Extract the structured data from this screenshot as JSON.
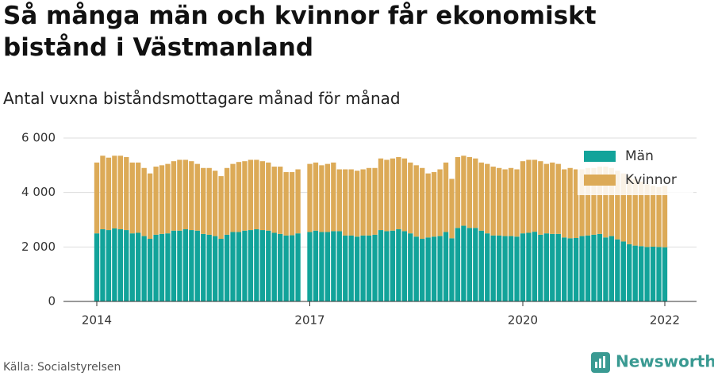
{
  "chart_data": {
    "type": "stacked_bar",
    "title": "Så många män och kvinnor får ekonomiskt bistånd i Västmanland",
    "subtitle": "Antal vuxna biståndsmottagare månad för månad",
    "source": "Källa: Socialstyrelsen",
    "brand": "Newsworthy",
    "categories": [
      "2014",
      null,
      null,
      null,
      null,
      null,
      null,
      null,
      null,
      null,
      null,
      null,
      null,
      null,
      null,
      null,
      null,
      null,
      null,
      null,
      null,
      null,
      null,
      null,
      null,
      null,
      null,
      null,
      null,
      null,
      null,
      null,
      null,
      null,
      null,
      null,
      "2017",
      null,
      null,
      null,
      null,
      null,
      null,
      null,
      null,
      null,
      null,
      null,
      null,
      null,
      null,
      null,
      null,
      null,
      null,
      null,
      null,
      null,
      null,
      null,
      null,
      null,
      null,
      null,
      null,
      null,
      null,
      null,
      null,
      null,
      null,
      null,
      "2020",
      null,
      null,
      null,
      null,
      null,
      null,
      null,
      null,
      null,
      null,
      null,
      null,
      null,
      null,
      null,
      null,
      null,
      null,
      null,
      null,
      null,
      null,
      null,
      "2022"
    ],
    "series": [
      {
        "name": "Män",
        "color": "#12a39a",
        "values": [
          2500,
          2650,
          2620,
          2680,
          2650,
          2620,
          2500,
          2520,
          2400,
          2300,
          2450,
          2480,
          2500,
          2600,
          2600,
          2650,
          2620,
          2600,
          2480,
          2450,
          2400,
          2300,
          2450,
          2550,
          2550,
          2600,
          2620,
          2650,
          2620,
          2600,
          2520,
          2480,
          2420,
          2430,
          2500,
          null,
          2550,
          2600,
          2550,
          2550,
          2580,
          2580,
          2420,
          2420,
          2380,
          2420,
          2420,
          2450,
          2620,
          2580,
          2600,
          2650,
          2580,
          2500,
          2380,
          2300,
          2350,
          2380,
          2400,
          2550,
          2320,
          2700,
          2780,
          2700,
          2700,
          2600,
          2500,
          2420,
          2420,
          2400,
          2400,
          2380,
          2500,
          2520,
          2560,
          2450,
          2500,
          2480,
          2480,
          2350,
          2320,
          2330,
          2400,
          2420,
          2450,
          2480,
          2350,
          2400,
          2280,
          2200,
          2100,
          2050,
          2030,
          2000,
          2010,
          2000,
          1990
        ]
      },
      {
        "name": "Kvinnor",
        "color": "#dcaa57",
        "values": [
          2600,
          2700,
          2660,
          2670,
          2700,
          2680,
          2600,
          2580,
          2500,
          2400,
          2500,
          2520,
          2550,
          2550,
          2600,
          2550,
          2530,
          2450,
          2420,
          2450,
          2400,
          2300,
          2450,
          2500,
          2570,
          2550,
          2580,
          2550,
          2530,
          2500,
          2430,
          2470,
          2330,
          2320,
          2350,
          null,
          2500,
          2500,
          2450,
          2500,
          2520,
          2270,
          2430,
          2430,
          2420,
          2430,
          2480,
          2450,
          2630,
          2620,
          2650,
          2650,
          2670,
          2600,
          2620,
          2600,
          2350,
          2370,
          2450,
          2550,
          2180,
          2600,
          2570,
          2600,
          2550,
          2500,
          2550,
          2530,
          2480,
          2450,
          2500,
          2470,
          2650,
          2680,
          2640,
          2700,
          2550,
          2620,
          2570,
          2500,
          2580,
          2520,
          2450,
          2480,
          2450,
          2470,
          2600,
          2500,
          2520,
          2500,
          2500,
          2450,
          2370,
          2300,
          2240,
          2200,
          2260
        ]
      }
    ],
    "ylim": [
      0,
      6000
    ],
    "yticks": [
      0,
      {
        "value": 2000,
        "label": "2 000"
      },
      {
        "value": 4000,
        "label": "4 000"
      },
      {
        "value": 6000,
        "label": "6 000"
      }
    ],
    "grid": true,
    "legend": "upper right"
  }
}
